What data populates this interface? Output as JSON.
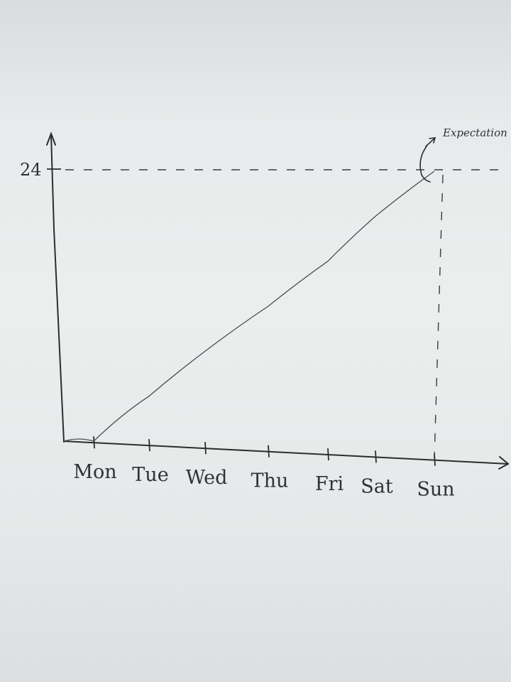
{
  "chart_data": {
    "type": "line",
    "categories": [
      "Mon",
      "Tue",
      "Wed",
      "Thu",
      "Fri",
      "Sat",
      "Sun"
    ],
    "series": [
      {
        "values": [
          0,
          4,
          8,
          12,
          16,
          20,
          24
        ]
      }
    ],
    "yticks": [
      "24"
    ],
    "ylim": [
      0,
      24
    ],
    "annotation": "Expectation",
    "grid": false
  },
  "colors": {
    "ink": "#2b2d2f",
    "board": "#eceeee"
  }
}
